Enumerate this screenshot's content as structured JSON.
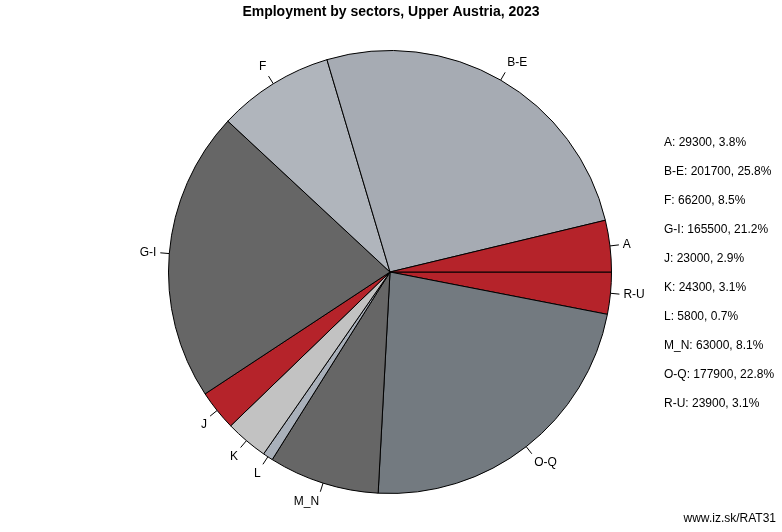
{
  "chart_data": {
    "type": "pie",
    "title": "Employment by sectors, Upper Austria, 2023",
    "categories": [
      "A",
      "B-E",
      "F",
      "G-I",
      "J",
      "K",
      "L",
      "M_N",
      "O-Q",
      "R-U"
    ],
    "values": [
      29300,
      201700,
      66200,
      165500,
      23000,
      24300,
      5800,
      63000,
      177900,
      23900
    ],
    "value_labels": [
      "A: 29300, 3.8%",
      "B-E: 201700, 25.8%",
      "F: 66200, 8.5%",
      "G-I: 165500, 21.2%",
      "J: 23000, 2.9%",
      "K: 24300, 3.1%",
      "L: 5800, 0.7%",
      "M_N: 63000, 8.1%",
      "O-Q: 177900, 22.8%",
      "R-U: 23900, 3.1%"
    ],
    "colors": [
      "#b5232a",
      "#a6abb3",
      "#b0b5bc",
      "#666666",
      "#b5232a",
      "#c2c2c2",
      "#a9b0ba",
      "#666666",
      "#737a80",
      "#b5232a"
    ],
    "source": "www.iz.sk/RAT31",
    "legend": false
  }
}
